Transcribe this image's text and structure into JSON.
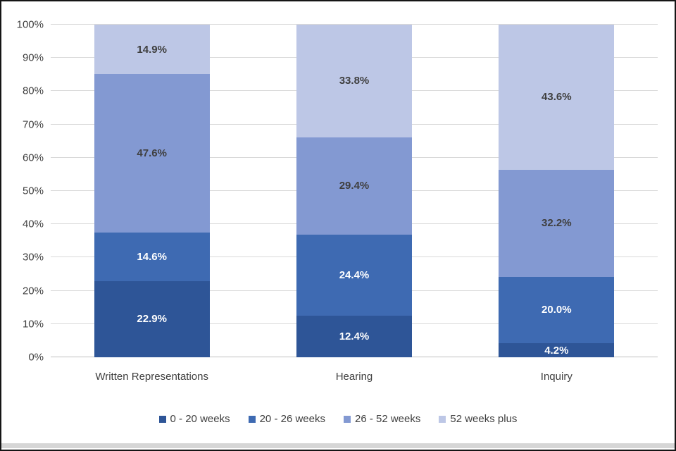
{
  "chart_data": {
    "type": "stacked-bar",
    "title": "",
    "xlabel": "",
    "ylabel": "",
    "categories": [
      "Written Representations",
      "Hearing",
      "Inquiry"
    ],
    "series": [
      {
        "name": "0 - 20 weeks",
        "color": "#2e5597",
        "label_color": "#ffffff",
        "values": [
          22.9,
          12.4,
          4.2
        ],
        "labels": [
          "22.9%",
          "12.4%",
          "4.2%"
        ]
      },
      {
        "name": "20 - 26 weeks",
        "color": "#3e6ab2",
        "label_color": "#ffffff",
        "values": [
          14.6,
          24.4,
          20.0
        ],
        "labels": [
          "14.6%",
          "24.4%",
          "20.0%"
        ]
      },
      {
        "name": "26 - 52 weeks",
        "color": "#8399d2",
        "label_color": "#3f3f3f",
        "values": [
          47.6,
          29.4,
          32.2
        ],
        "labels": [
          "47.6%",
          "29.4%",
          "32.2%"
        ]
      },
      {
        "name": "52 weeks plus",
        "color": "#bdc7e6",
        "label_color": "#3f3f3f",
        "values": [
          14.9,
          33.8,
          43.6
        ],
        "labels": [
          "14.9%",
          "33.8%",
          "43.6%"
        ]
      }
    ],
    "ylim": [
      0,
      100
    ],
    "yticks": [
      "0%",
      "10%",
      "20%",
      "30%",
      "40%",
      "50%",
      "60%",
      "70%",
      "80%",
      "90%",
      "100%"
    ],
    "grid": true,
    "legend_position": "bottom"
  }
}
